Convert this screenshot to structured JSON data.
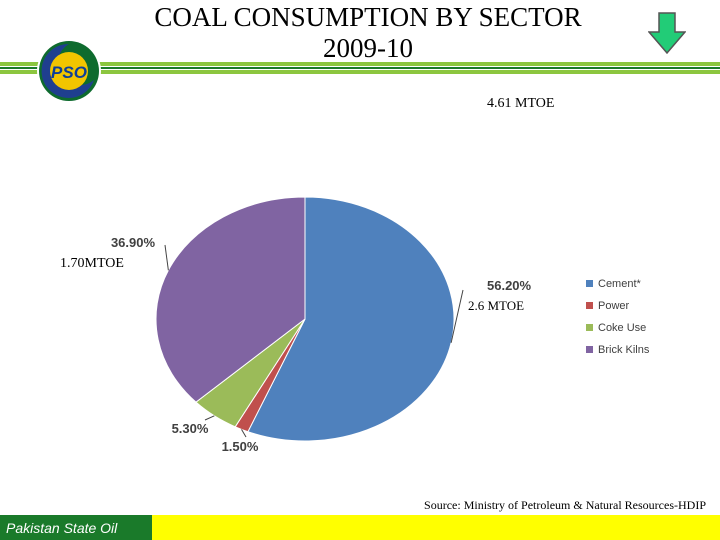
{
  "header": {
    "title_line1": "COAL CONSUMPTION BY SECTOR",
    "title_line2": "2009-10",
    "logo_text": "PSO",
    "colors": {
      "green_dark": "#1a7a2a",
      "green_light": "#8cc63f",
      "yellow": "#ffff00"
    }
  },
  "annotations": {
    "total": "4.61 MTOE",
    "brick": "1.70MTOE",
    "cement": "2.6 MTOE"
  },
  "chart_data": {
    "type": "pie",
    "title": "",
    "categories": [
      "Cement*",
      "Power",
      "Coke Use",
      "Brick Kilns"
    ],
    "values": [
      56.2,
      1.5,
      5.3,
      36.9
    ],
    "labels": [
      "56.20%",
      "1.50%",
      "5.30%",
      "36.90%"
    ],
    "colors": [
      "#4f81bd",
      "#c0504d",
      "#9bbb59",
      "#8064a2"
    ],
    "legend_position": "right"
  },
  "source": "Source: Ministry of Petroleum & Natural Resources-HDIP",
  "footer": {
    "brand": "Pakistan State Oil"
  }
}
